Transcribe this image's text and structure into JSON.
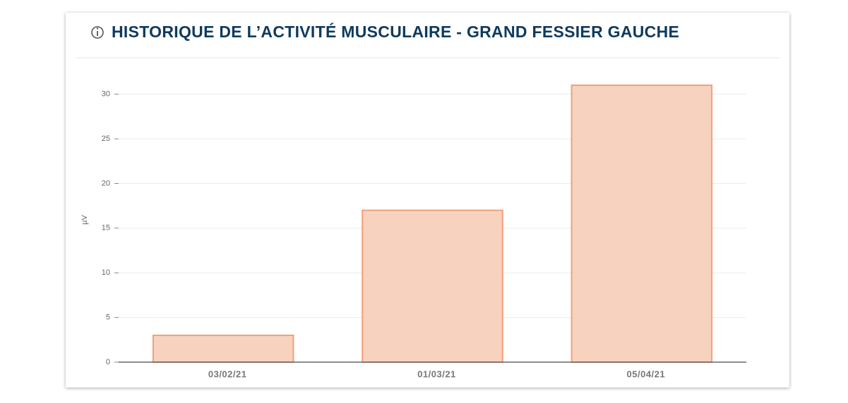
{
  "chart_data": {
    "type": "bar",
    "title": "HISTORIQUE DE L’ACTIVITÉ MUSCULAIRE - GRAND FESSIER GAUCHE",
    "y_label": "µV",
    "categories": [
      "03/02/21",
      "01/03/21",
      "05/04/21"
    ],
    "values": [
      3,
      17,
      31
    ],
    "color": "#f7d2bf",
    "border_color": "#f0a07a",
    "ylim": [
      0,
      31
    ],
    "yticks": [
      0,
      5,
      10,
      15,
      20,
      25,
      30
    ],
    "grid": true
  }
}
